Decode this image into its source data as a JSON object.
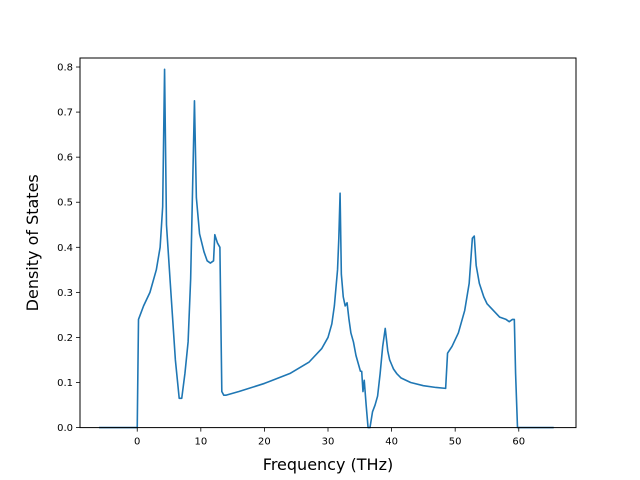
{
  "chart_data": {
    "type": "line",
    "title": "",
    "xlabel": "Frequency (THz)",
    "ylabel": "Density of States",
    "xlim": [
      -9.0,
      69.0
    ],
    "ylim": [
      0.0,
      0.82
    ],
    "xticks": [
      0,
      10,
      20,
      30,
      40,
      50,
      60
    ],
    "xtick_labels": [
      "0",
      "10",
      "20",
      "30",
      "40",
      "50",
      "60"
    ],
    "yticks": [
      0.0,
      0.1,
      0.2,
      0.3,
      0.4,
      0.5,
      0.6,
      0.7,
      0.8
    ],
    "ytick_labels": [
      "0.0",
      "0.1",
      "0.2",
      "0.3",
      "0.4",
      "0.5",
      "0.6",
      "0.7",
      "0.8"
    ],
    "grid": false,
    "line_color": "#1f77b4",
    "series": [
      {
        "x": [
          -6.0,
          -0.2,
          0.0,
          0.2,
          1.0,
          2.0,
          3.0,
          3.6,
          4.0,
          4.3,
          4.6,
          5.2,
          6.0,
          6.6,
          7.0,
          7.5,
          8.0,
          8.4,
          9.0,
          9.3,
          9.8,
          10.5,
          11.0,
          11.5,
          12.0,
          12.2,
          12.6,
          13.0,
          13.3,
          13.6,
          14.0,
          16.0,
          20.0,
          24.0,
          27.0,
          29.0,
          30.0,
          30.6,
          31.0,
          31.5,
          31.7,
          31.9,
          32.1,
          32.4,
          32.7,
          33.0,
          33.3,
          33.6,
          34.0,
          34.4,
          34.8,
          35.1,
          35.3,
          35.5,
          35.7,
          36.0,
          36.3,
          36.6,
          37.0,
          37.4,
          37.8,
          38.2,
          38.6,
          39.0,
          39.4,
          39.7,
          40.0,
          40.3,
          40.8,
          41.5,
          43.0,
          45.0,
          47.0,
          48.5,
          48.8,
          49.5,
          50.5,
          51.5,
          52.2,
          52.7,
          53.0,
          53.3,
          53.8,
          54.5,
          55.0,
          56.0,
          57.0,
          58.0,
          58.5,
          59.0,
          59.3,
          59.5,
          59.8,
          60.0,
          65.5
        ],
        "y": [
          0.0,
          0.0,
          0.0,
          0.24,
          0.27,
          0.3,
          0.35,
          0.4,
          0.49,
          0.795,
          0.45,
          0.32,
          0.15,
          0.065,
          0.065,
          0.12,
          0.19,
          0.33,
          0.725,
          0.51,
          0.43,
          0.39,
          0.37,
          0.365,
          0.37,
          0.428,
          0.41,
          0.4,
          0.08,
          0.072,
          0.072,
          0.08,
          0.098,
          0.12,
          0.145,
          0.175,
          0.2,
          0.23,
          0.27,
          0.35,
          0.42,
          0.52,
          0.34,
          0.29,
          0.27,
          0.277,
          0.24,
          0.21,
          0.19,
          0.16,
          0.14,
          0.125,
          0.125,
          0.08,
          0.105,
          0.05,
          0.0,
          0.0,
          0.035,
          0.05,
          0.07,
          0.12,
          0.18,
          0.22,
          0.17,
          0.15,
          0.14,
          0.13,
          0.12,
          0.11,
          0.1,
          0.093,
          0.089,
          0.087,
          0.165,
          0.18,
          0.21,
          0.26,
          0.32,
          0.42,
          0.425,
          0.36,
          0.32,
          0.29,
          0.275,
          0.26,
          0.245,
          0.24,
          0.235,
          0.24,
          0.24,
          0.12,
          0.0,
          0.0,
          0.0
        ]
      }
    ]
  }
}
